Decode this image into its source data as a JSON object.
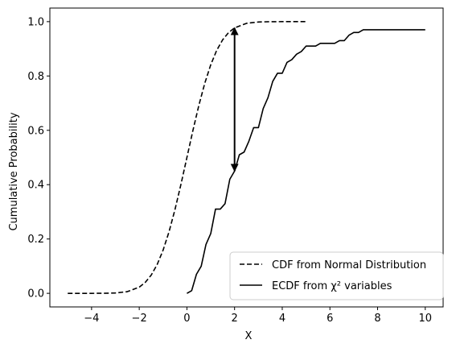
{
  "chart_data": {
    "type": "line",
    "xlabel": "X",
    "ylabel": "Cumulative Probability",
    "xlim": [
      -5.75,
      10.75
    ],
    "ylim": [
      -0.05,
      1.05
    ],
    "xticks": [
      -4,
      -2,
      0,
      2,
      4,
      6,
      8,
      10
    ],
    "yticks": [
      0.0,
      0.2,
      0.4,
      0.6,
      0.8,
      1.0
    ],
    "xtick_labels": [
      "−4",
      "−2",
      "0",
      "2",
      "4",
      "6",
      "8",
      "10"
    ],
    "ytick_labels": [
      "0.0",
      "0.2",
      "0.4",
      "0.6",
      "0.8",
      "1.0"
    ],
    "grid": false,
    "legend_position": "lower-right",
    "series": [
      {
        "name": "CDF from Normal Distribution",
        "style": "dashed",
        "color": "#000000",
        "x": [
          -5,
          -4.5,
          -4,
          -3.5,
          -3,
          -2.5,
          -2,
          -1.75,
          -1.5,
          -1.25,
          -1,
          -0.75,
          -0.5,
          -0.25,
          0,
          0.25,
          0.5,
          0.75,
          1,
          1.25,
          1.5,
          1.75,
          2,
          2.5,
          3,
          3.5,
          4,
          4.5,
          5
        ],
        "y": [
          0.0,
          0.0,
          0.0,
          0.0002,
          0.0013,
          0.0062,
          0.0228,
          0.0401,
          0.0668,
          0.1056,
          0.1587,
          0.2266,
          0.3085,
          0.4013,
          0.5,
          0.5987,
          0.6915,
          0.7734,
          0.8413,
          0.8944,
          0.9332,
          0.9599,
          0.9772,
          0.9938,
          0.9987,
          0.9998,
          1.0,
          1.0,
          1.0
        ]
      },
      {
        "name": "ECDF from χ² variables",
        "style": "solid",
        "color": "#000000",
        "x": [
          0,
          0.2,
          0.4,
          0.6,
          0.8,
          1.0,
          1.2,
          1.4,
          1.6,
          1.8,
          2.0,
          2.2,
          2.4,
          2.6,
          2.8,
          3.0,
          3.2,
          3.4,
          3.6,
          3.8,
          4.0,
          4.2,
          4.4,
          4.6,
          4.8,
          5.0,
          5.2,
          5.4,
          5.6,
          5.8,
          6.0,
          6.2,
          6.4,
          6.6,
          6.8,
          7.0,
          7.2,
          7.4,
          7.6,
          7.8,
          8.0,
          8.5,
          9.0,
          9.5,
          10.0
        ],
        "y": [
          0.0,
          0.01,
          0.07,
          0.1,
          0.18,
          0.22,
          0.31,
          0.31,
          0.33,
          0.42,
          0.45,
          0.51,
          0.52,
          0.56,
          0.61,
          0.61,
          0.68,
          0.72,
          0.78,
          0.81,
          0.81,
          0.85,
          0.86,
          0.88,
          0.89,
          0.91,
          0.91,
          0.91,
          0.92,
          0.92,
          0.92,
          0.92,
          0.93,
          0.93,
          0.95,
          0.96,
          0.96,
          0.97,
          0.97,
          0.97,
          0.97,
          0.97,
          0.97,
          0.97,
          0.97
        ]
      }
    ],
    "annotation": {
      "type": "double-arrow",
      "x": 2.0,
      "y_from": 0.977,
      "y_to": 0.45
    }
  }
}
